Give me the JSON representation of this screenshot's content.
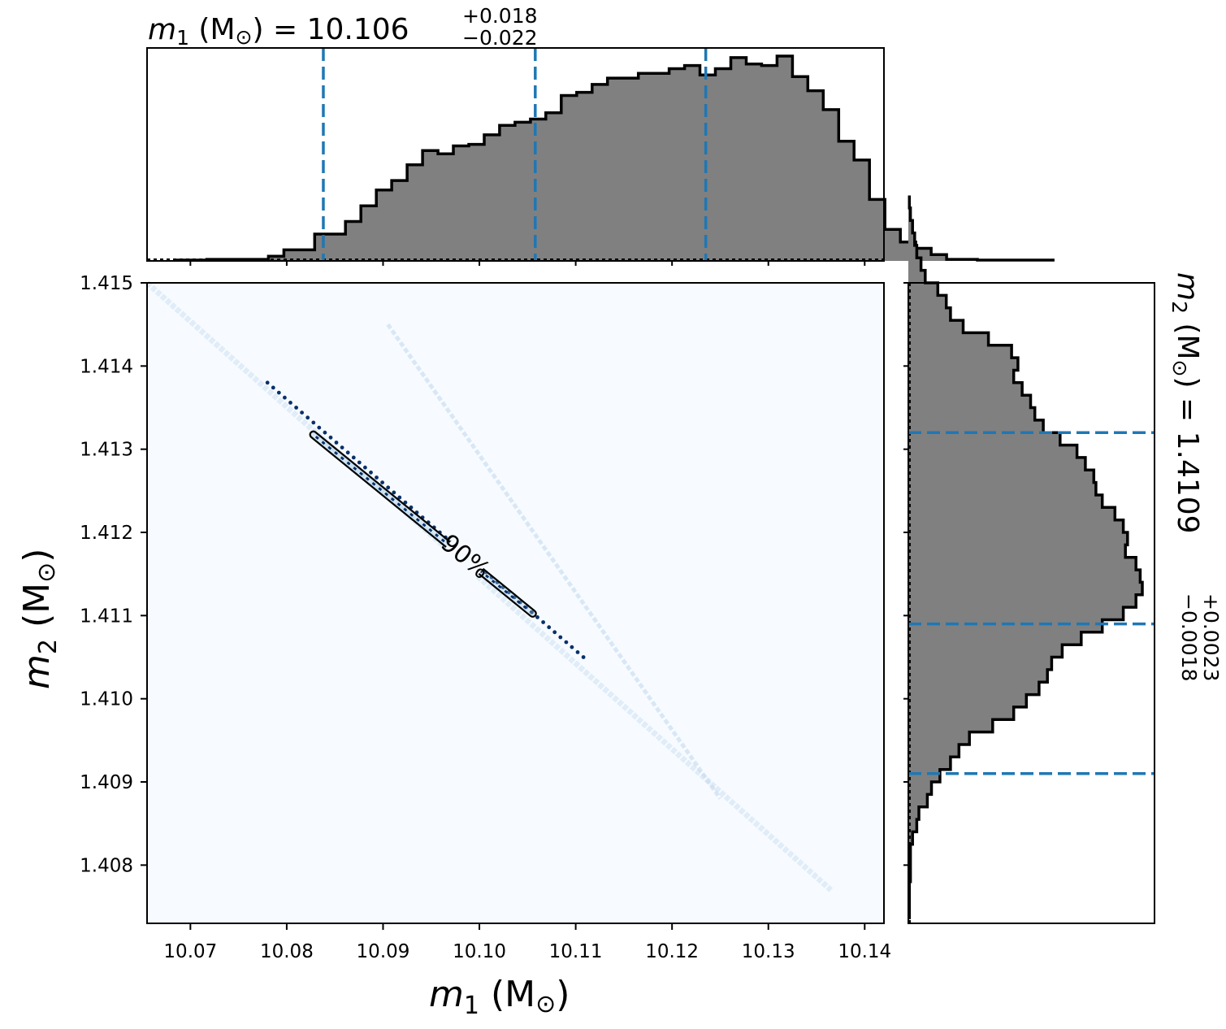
{
  "chart_data": [
    {
      "type": "histogram",
      "panel": "top-marginal",
      "title": {
        "symbol": "m",
        "subscript": "1",
        "unit_open": " (M",
        "unit_sym": "⊙",
        "unit_close": ") = ",
        "median": "10.106",
        "plus": "+0.018",
        "minus": "−0.022"
      },
      "bin_edges_start": 10.0685,
      "bin_width": 0.0016,
      "bin_heights": [
        0.5,
        0.5,
        1,
        1,
        1,
        1,
        3,
        7,
        7,
        17,
        17,
        25,
        35,
        45,
        51,
        61,
        70,
        68,
        73,
        74,
        80,
        86,
        88,
        90,
        94,
        105,
        107,
        112,
        116,
        116,
        119,
        119,
        122,
        124,
        118,
        122,
        129,
        125,
        124,
        130,
        117,
        108,
        96,
        76,
        64,
        39,
        20,
        12,
        8,
        4,
        1,
        1,
        0.5,
        0.5,
        0.5,
        0.5,
        0.5
      ],
      "quantile_lines": [
        10.0838,
        10.1058,
        10.1235
      ],
      "xlim": [
        10.0655,
        10.142
      ],
      "xticks": [
        "10.07",
        "10.08",
        "10.09",
        "10.10",
        "10.11",
        "10.12",
        "10.13",
        "10.14"
      ],
      "fill_color": "#808080",
      "edge_color": "#000000",
      "line_color": "#1f77b4"
    },
    {
      "type": "heatmap",
      "panel": "joint",
      "xlabel": {
        "symbol": "m",
        "subscript": "1",
        "unit": " (M",
        "unit_sym": "⊙",
        "unit_close": ")"
      },
      "ylabel": {
        "symbol": "m",
        "subscript": "2",
        "unit": " (M",
        "unit_sym": "⊙",
        "unit_close": ")"
      },
      "xlim": [
        10.0655,
        10.142
      ],
      "ylim": [
        1.4073,
        1.415
      ],
      "xticks": [
        "10.07",
        "10.08",
        "10.09",
        "10.10",
        "10.11",
        "10.12",
        "10.13",
        "10.14"
      ],
      "yticks": [
        "1.408",
        "1.409",
        "1.410",
        "1.411",
        "1.412",
        "1.413",
        "1.414",
        "1.415"
      ],
      "ridge": {
        "from": [
          10.0655,
          1.415
        ],
        "to": [
          10.1365,
          1.4077
        ]
      },
      "contour_label": "90%",
      "contour": {
        "from": [
          10.0825,
          1.4132
        ],
        "to": [
          10.1058,
          1.411
        ]
      },
      "scatter_segment": {
        "from": [
          10.078,
          1.4138
        ],
        "to": [
          10.1108,
          1.4105
        ]
      },
      "colormap": [
        "#f7fbff",
        "#deebf7",
        "#c6dbef",
        "#08306b"
      ]
    },
    {
      "type": "histogram",
      "panel": "right-marginal",
      "orientation": "horizontal",
      "label": {
        "symbol": "m",
        "subscript": "2",
        "unit_open": " (M",
        "unit_sym": "⊙",
        "unit_close": ") = ",
        "median": "1.4109",
        "plus": "+0.0023",
        "minus": "−0.0018"
      },
      "bin_edges_start": 1.40735,
      "bin_width": 0.00015,
      "bin_heights": [
        0.5,
        0.5,
        0.5,
        1,
        1,
        1,
        2,
        4,
        5,
        9,
        11,
        15,
        20,
        24,
        29,
        40,
        50,
        56,
        62,
        66,
        68,
        73,
        82,
        92,
        102,
        108,
        111,
        110,
        108,
        103,
        104,
        102,
        98,
        92,
        89,
        88,
        84,
        80,
        72,
        64,
        60,
        58,
        54,
        50,
        52,
        49,
        38,
        26,
        20,
        18,
        14,
        8,
        6,
        4,
        3,
        2,
        1,
        0.5
      ],
      "quantile_lines": [
        1.4091,
        1.4109,
        1.4132
      ],
      "ylim": [
        1.4073,
        1.415
      ],
      "fill_color": "#808080",
      "edge_color": "#000000",
      "line_color": "#1f77b4"
    }
  ]
}
